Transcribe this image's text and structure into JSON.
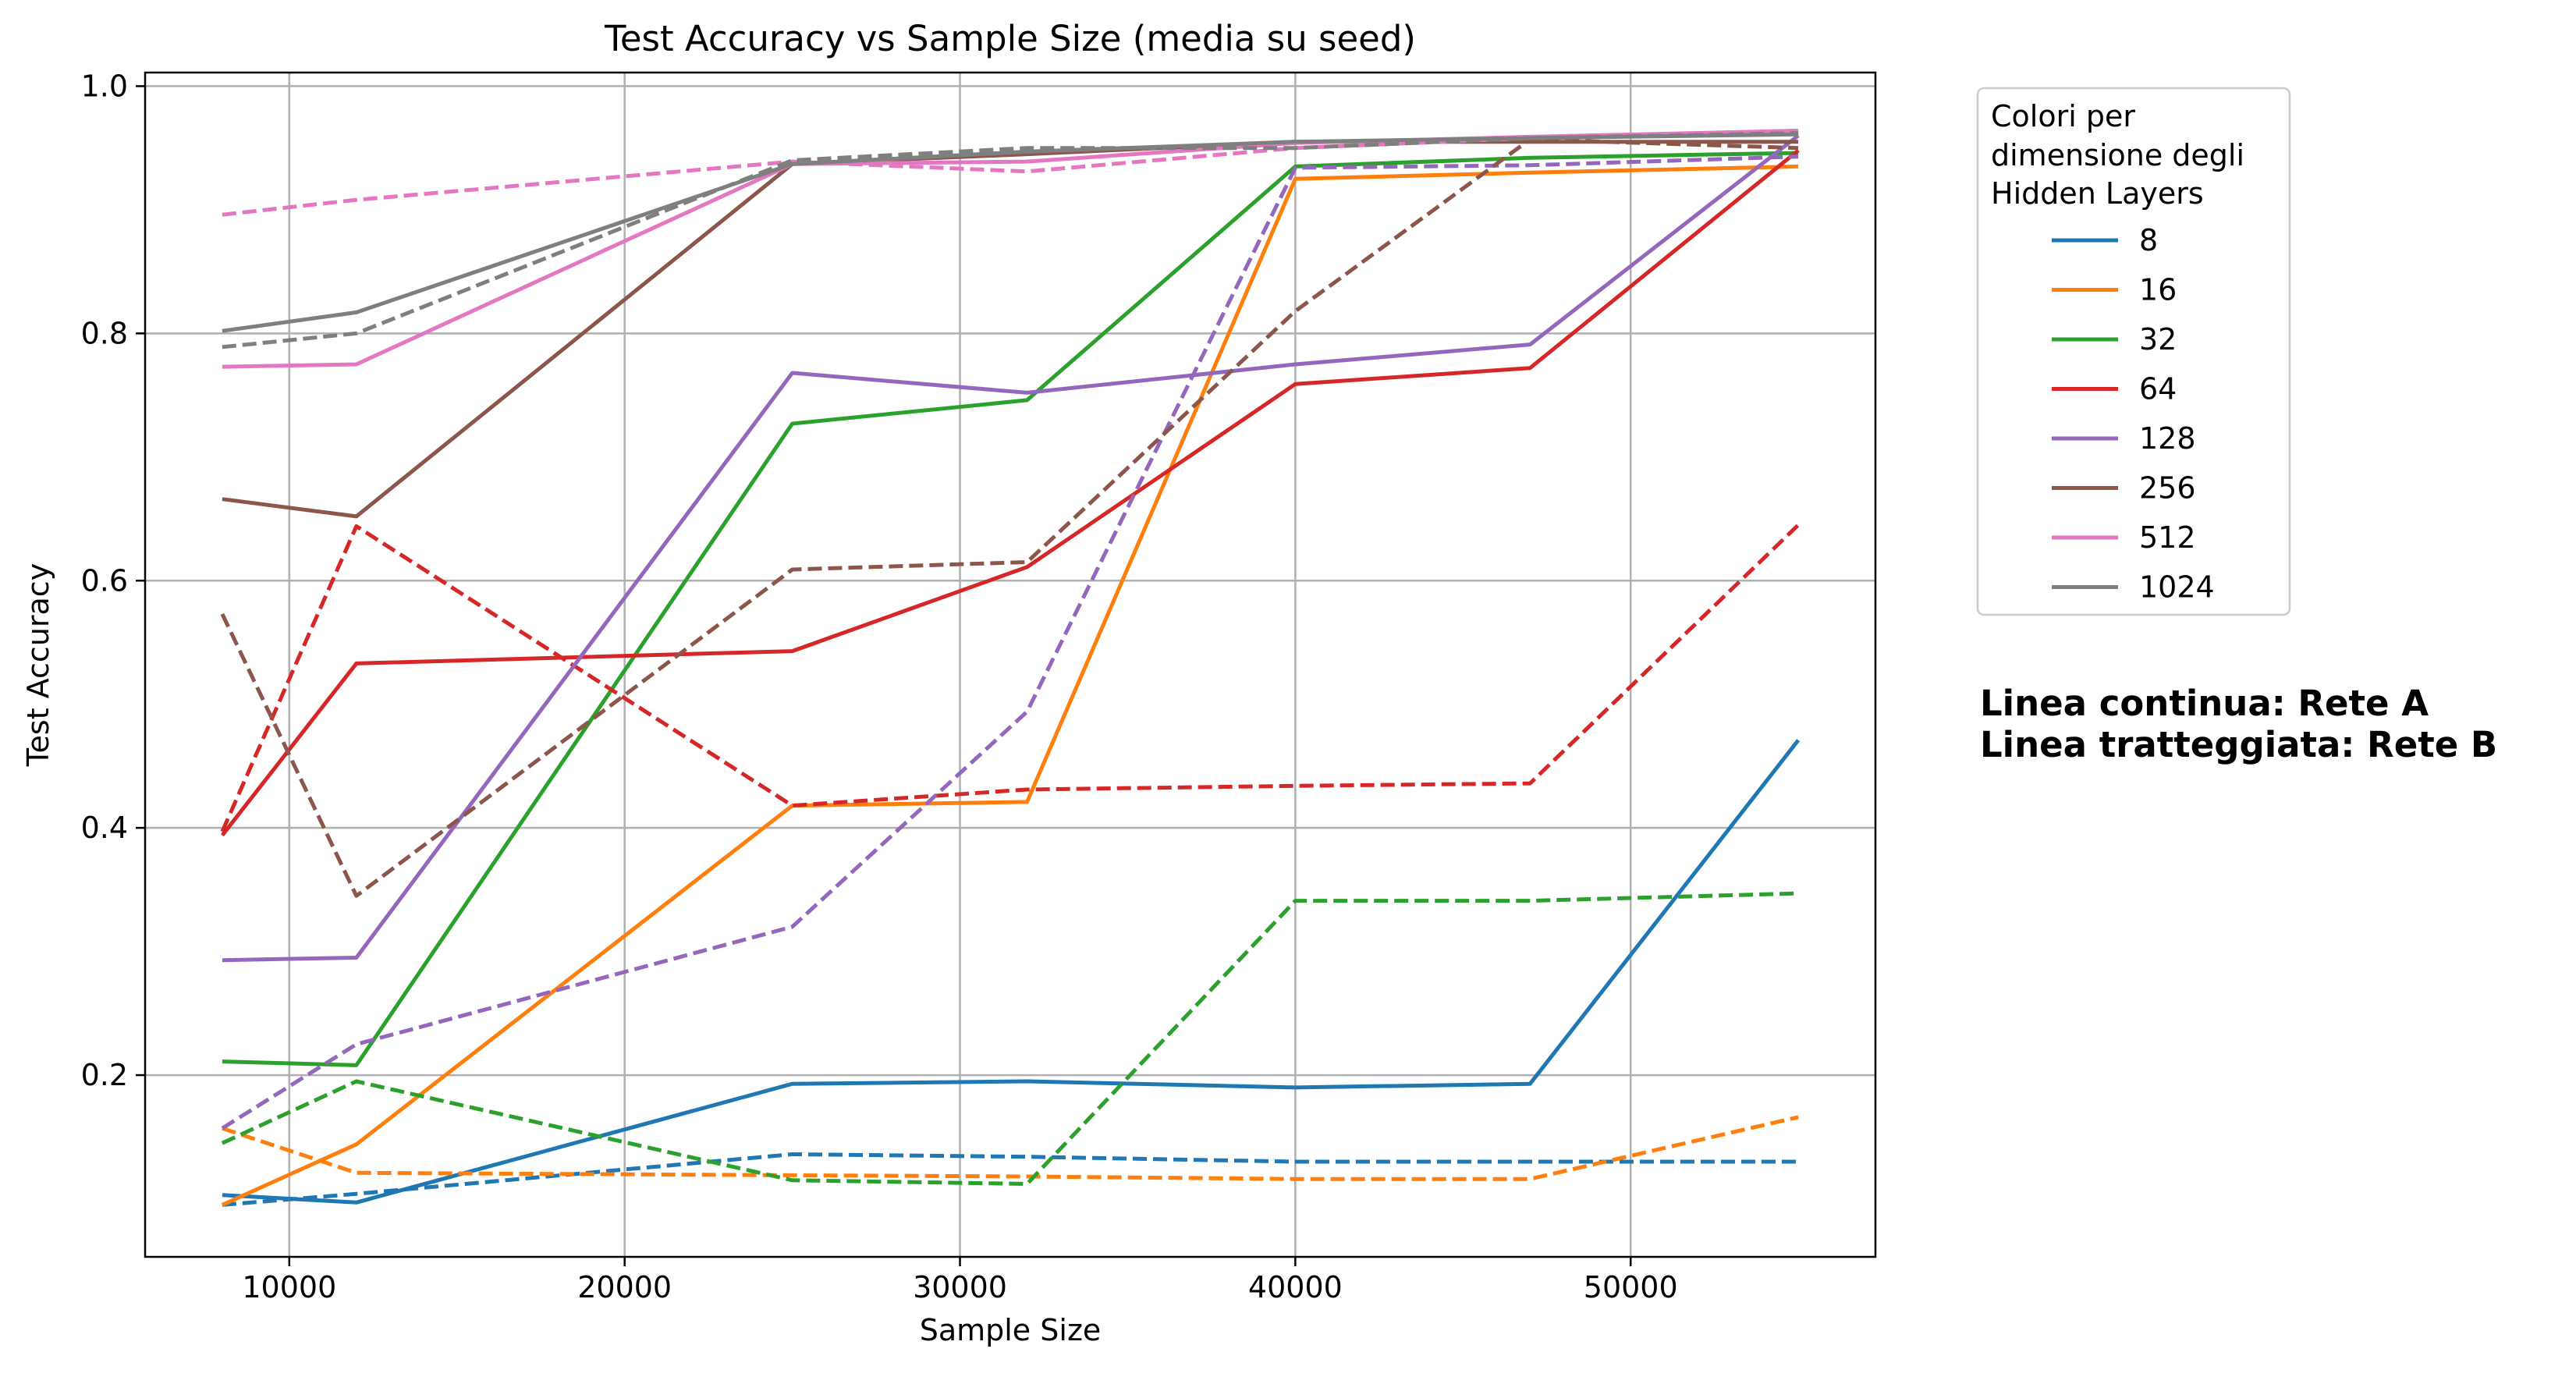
{
  "chart_data": {
    "type": "line",
    "title": "Test Accuracy vs Sample Size (media su seed)",
    "xlabel": "Sample Size",
    "ylabel": "Test Accuracy",
    "xlim": [
      5700,
      57300
    ],
    "ylim": [
      0.053,
      1.011
    ],
    "xticks": [
      10000,
      20000,
      30000,
      40000,
      50000
    ],
    "xtick_labels": [
      "10000",
      "20000",
      "30000",
      "40000",
      "50000"
    ],
    "yticks": [
      0.2,
      0.4,
      0.6,
      0.8,
      1.0
    ],
    "ytick_labels": [
      "0.2",
      "0.4",
      "0.6",
      "0.8",
      "1.0"
    ],
    "grid": true,
    "x": [
      8000,
      12000,
      25000,
      32000,
      40000,
      47000,
      55000
    ],
    "legend": {
      "title_lines": [
        "Colori per",
        "dimensione degli",
        "Hidden Layers"
      ],
      "placement": "outside right, top"
    },
    "annotations": [
      "Linea continua: Rete A",
      "Linea tratteggiata: Rete B"
    ],
    "series": [
      {
        "name": "8",
        "color": "#1f77b4",
        "rete_a": [
          0.103,
          0.097,
          0.193,
          0.195,
          0.19,
          0.193,
          0.471
        ],
        "rete_b": [
          0.095,
          0.104,
          0.136,
          0.134,
          0.13,
          0.13,
          0.13
        ]
      },
      {
        "name": "16",
        "color": "#ff7f0e",
        "rete_a": [
          0.095,
          0.144,
          0.418,
          0.421,
          0.925,
          0.93,
          0.935
        ],
        "rete_b": [
          0.157,
          0.121,
          0.119,
          0.118,
          0.116,
          0.116,
          0.166
        ]
      },
      {
        "name": "32",
        "color": "#2ca02c",
        "rete_a": [
          0.211,
          0.208,
          0.727,
          0.746,
          0.935,
          0.942,
          0.946
        ],
        "rete_b": [
          0.145,
          0.195,
          0.115,
          0.112,
          0.341,
          0.341,
          0.347
        ]
      },
      {
        "name": "64",
        "color": "#d62728",
        "rete_a": [
          0.394,
          0.533,
          0.543,
          0.611,
          0.759,
          0.772,
          0.948
        ],
        "rete_b": [
          0.397,
          0.644,
          0.418,
          0.431,
          0.434,
          0.436,
          0.645
        ]
      },
      {
        "name": "128",
        "color": "#9467bd",
        "rete_a": [
          0.293,
          0.295,
          0.768,
          0.752,
          0.775,
          0.791,
          0.96
        ],
        "rete_b": [
          0.157,
          0.225,
          0.32,
          0.494,
          0.934,
          0.936,
          0.943
        ]
      },
      {
        "name": "256",
        "color": "#8c564b",
        "rete_a": [
          0.666,
          0.652,
          0.937,
          0.945,
          0.955,
          0.955,
          0.955
        ],
        "rete_b": [
          0.573,
          0.345,
          0.609,
          0.615,
          0.818,
          0.957,
          0.95
        ]
      },
      {
        "name": "512",
        "color": "#e377c2",
        "rete_a": [
          0.773,
          0.775,
          0.937,
          0.939,
          0.954,
          0.959,
          0.964
        ],
        "rete_b": [
          0.896,
          0.908,
          0.939,
          0.931,
          0.95,
          0.958,
          0.964
        ]
      },
      {
        "name": "1024",
        "color": "#7f7f7f",
        "rete_a": [
          0.802,
          0.817,
          0.937,
          0.947,
          0.955,
          0.958,
          0.961
        ],
        "rete_b": [
          0.789,
          0.8,
          0.94,
          0.95,
          0.95,
          0.958,
          0.962
        ]
      }
    ]
  }
}
